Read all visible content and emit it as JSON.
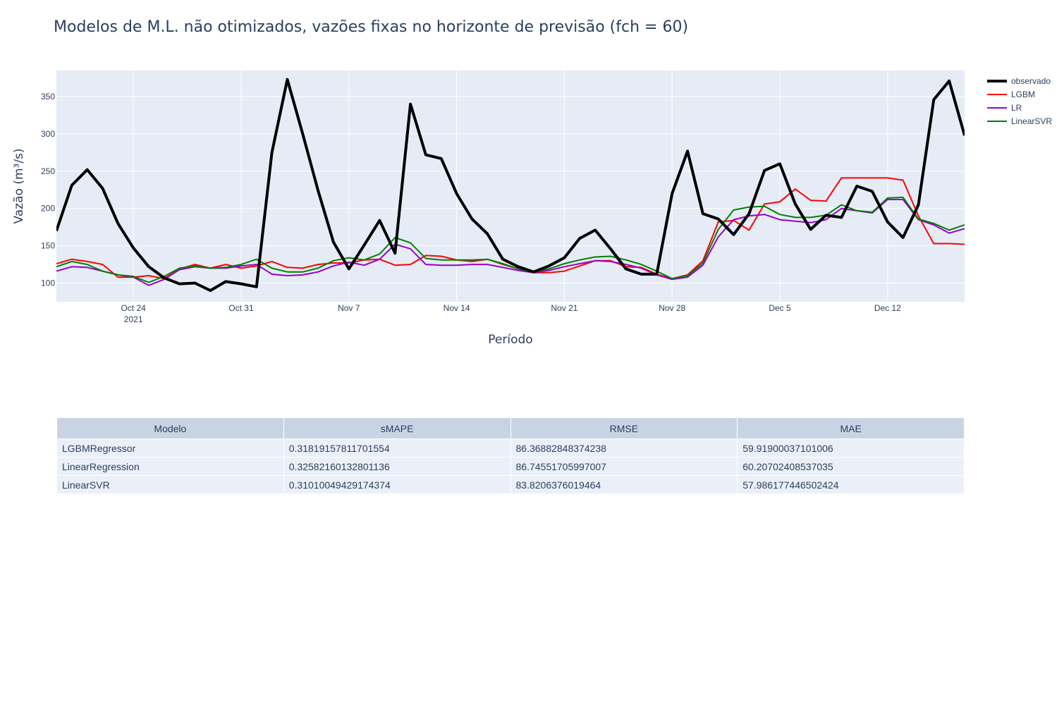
{
  "chart_data": {
    "type": "line",
    "title": "Modelos de M.L. não otimizados, vazões fixas no horizonte de previsão (fch = 60)",
    "xlabel": "Período",
    "ylabel": "Vazão (m³/s)",
    "x_start": "2021-10-19",
    "x_range": [
      "2021-10-19",
      "2021-12-17"
    ],
    "ylim": [
      75,
      385
    ],
    "y_ticks": [
      100,
      150,
      200,
      250,
      300,
      350
    ],
    "x_ticks": [
      {
        "date": "2021-10-24",
        "label": "Oct 24",
        "sublabel": "2021"
      },
      {
        "date": "2021-10-31",
        "label": "Oct 31",
        "sublabel": ""
      },
      {
        "date": "2021-11-07",
        "label": "Nov 7",
        "sublabel": ""
      },
      {
        "date": "2021-11-14",
        "label": "Nov 14",
        "sublabel": ""
      },
      {
        "date": "2021-11-21",
        "label": "Nov 21",
        "sublabel": ""
      },
      {
        "date": "2021-11-28",
        "label": "Nov 28",
        "sublabel": ""
      },
      {
        "date": "2021-12-05",
        "label": "Dec 5",
        "sublabel": ""
      },
      {
        "date": "2021-12-12",
        "label": "Dec 12",
        "sublabel": ""
      }
    ],
    "grid": true,
    "legend_position": "top-right",
    "series": [
      {
        "name": "observado",
        "color": "#000000",
        "width": 4,
        "values": [
          170,
          231,
          252,
          227,
          180,
          147,
          122,
          107,
          99,
          100,
          90,
          102,
          99,
          95,
          275,
          373,
          300,
          224,
          155,
          119,
          151,
          184,
          140,
          340,
          272,
          267,
          220,
          186,
          166,
          132,
          122,
          115,
          123,
          134,
          160,
          171,
          146,
          119,
          112,
          112,
          220,
          277,
          193,
          186,
          165,
          193,
          251,
          260,
          206,
          172,
          191,
          188,
          230,
          223,
          182,
          161,
          205,
          346,
          371,
          298
        ]
      },
      {
        "name": "LGBM",
        "color": "#ff0000",
        "width": 2,
        "values": [
          126,
          132,
          129,
          125,
          108,
          108,
          110,
          106,
          119,
          125,
          120,
          125,
          120,
          123,
          129,
          121,
          120,
          125,
          127,
          127,
          131,
          132,
          124,
          125,
          137,
          136,
          131,
          129,
          132,
          125,
          119,
          114,
          114,
          116,
          123,
          130,
          130,
          122,
          121,
          112,
          106,
          111,
          130,
          182,
          184,
          171,
          206,
          209,
          226,
          211,
          210,
          241,
          241,
          241,
          241,
          238,
          190,
          153,
          153,
          152
        ]
      },
      {
        "name": "LR",
        "color": "#9900cc",
        "width": 2,
        "values": [
          116,
          122,
          121,
          116,
          111,
          108,
          97,
          105,
          118,
          122,
          120,
          120,
          123,
          125,
          112,
          110,
          111,
          115,
          123,
          128,
          124,
          132,
          152,
          146,
          125,
          124,
          124,
          125,
          125,
          121,
          117,
          114,
          117,
          122,
          126,
          130,
          129,
          125,
          120,
          111,
          105,
          108,
          124,
          162,
          185,
          190,
          192,
          185,
          183,
          181,
          185,
          200,
          197,
          194,
          212,
          212,
          185,
          178,
          167,
          173
        ]
      },
      {
        "name": "LinearSVR",
        "color": "#008000",
        "width": 2,
        "values": [
          122,
          129,
          125,
          116,
          111,
          109,
          101,
          109,
          120,
          123,
          120,
          121,
          125,
          132,
          120,
          115,
          115,
          120,
          130,
          134,
          131,
          139,
          161,
          154,
          133,
          131,
          131,
          131,
          132,
          126,
          119,
          115,
          119,
          126,
          131,
          135,
          136,
          131,
          125,
          116,
          106,
          110,
          127,
          172,
          198,
          202,
          203,
          192,
          188,
          188,
          191,
          205,
          197,
          195,
          214,
          215,
          186,
          180,
          171,
          178
        ]
      }
    ]
  },
  "table": {
    "headers": [
      "Modelo",
      "sMAPE",
      "RMSE",
      "MAE"
    ],
    "rows": [
      [
        "LGBMRegressor",
        "0.31819157811701554",
        "86.36882848374238",
        "59.91900037101006"
      ],
      [
        "LinearRegression",
        "0.32582160132801136",
        "86.74551705997007",
        "60.20702408537035"
      ],
      [
        "LinearSVR",
        "0.31010049429174374",
        "83.8206376019464",
        "57.986177446502424"
      ]
    ]
  }
}
